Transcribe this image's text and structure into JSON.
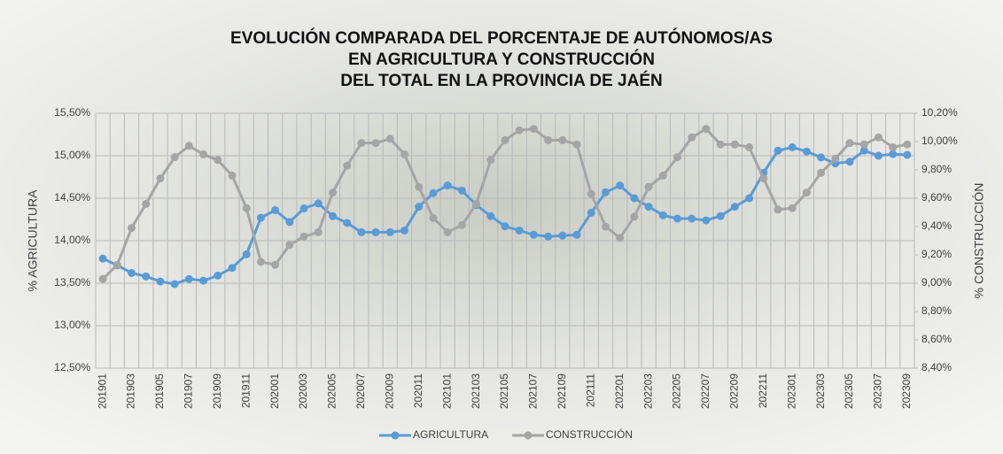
{
  "chart_data": {
    "type": "line",
    "title": [
      "EVOLUCIÓN COMPARADA DEL PORCENTAJE DE AUTÓNOMOS/AS",
      "EN AGRICULTURA Y CONSTRUCCIÓN",
      "DEL TOTAL EN LA PROVINCIA DE JAÉN"
    ],
    "ylabel": "% AGRICULTURA",
    "y2label": "% CONSTRUCCIÓN",
    "categories": [
      "201901",
      null,
      "201903",
      null,
      "201905",
      null,
      "201907",
      null,
      "201909",
      null,
      "201911",
      null,
      "202001",
      null,
      "202003",
      null,
      "202005",
      null,
      "202007",
      null,
      "202009",
      null,
      "202011",
      null,
      "202101",
      null,
      "202103",
      null,
      "202105",
      null,
      "202107",
      null,
      "202109",
      null,
      "202111",
      null,
      "202201",
      null,
      "202203",
      null,
      "202205",
      null,
      "202207",
      null,
      "202209",
      null,
      "202211",
      null,
      "202301",
      null,
      "202303",
      null,
      "202305",
      null,
      "202307",
      null,
      "202309"
    ],
    "series": [
      {
        "name": "AGRICULTURA",
        "color": "#5b9bd5",
        "axis": "y",
        "values": [
          13.79,
          13.71,
          13.62,
          13.58,
          13.52,
          13.49,
          13.55,
          13.53,
          13.59,
          13.68,
          13.84,
          14.27,
          14.36,
          14.22,
          14.38,
          14.44,
          14.29,
          14.21,
          14.1,
          14.1,
          14.1,
          14.12,
          14.4,
          14.56,
          14.65,
          14.59,
          14.42,
          14.29,
          14.17,
          14.12,
          14.07,
          14.05,
          14.06,
          14.07,
          14.33,
          14.57,
          14.65,
          14.5,
          14.4,
          14.3,
          14.26,
          14.26,
          14.24,
          14.29,
          14.4,
          14.5,
          14.8,
          15.06,
          15.1,
          15.05,
          14.98,
          14.91,
          14.93,
          15.06,
          15.0,
          15.02,
          15.01
        ]
      },
      {
        "name": "CONSTRUCCIÓN",
        "color": "#a5a5a5",
        "axis": "y2",
        "values": [
          9.03,
          9.13,
          9.39,
          9.56,
          9.74,
          9.89,
          9.97,
          9.91,
          9.87,
          9.76,
          9.53,
          9.15,
          9.13,
          9.27,
          9.33,
          9.36,
          9.64,
          9.83,
          9.99,
          9.99,
          10.02,
          9.91,
          9.68,
          9.46,
          9.36,
          9.41,
          9.56,
          9.87,
          10.01,
          10.08,
          10.09,
          10.01,
          10.01,
          9.98,
          9.63,
          9.4,
          9.32,
          9.47,
          9.68,
          9.76,
          9.89,
          10.03,
          10.09,
          9.98,
          9.98,
          9.96,
          9.74,
          9.52,
          9.53,
          9.64,
          9.78,
          9.88,
          9.99,
          9.98,
          10.03,
          9.96,
          9.98
        ]
      }
    ],
    "ylim": [
      12.5,
      15.5
    ],
    "yticks": [
      {
        "value": 12.5,
        "label": "12,50%"
      },
      {
        "value": 13,
        "label": "13,00%"
      },
      {
        "value": 13.5,
        "label": "13,50%"
      },
      {
        "value": 14,
        "label": "14,00%"
      },
      {
        "value": 14.5,
        "label": "14,50%"
      },
      {
        "value": 15,
        "label": "15,00%"
      },
      {
        "value": 15.5,
        "label": "15,50%"
      }
    ],
    "y2lim": [
      8.4,
      10.2
    ],
    "y2ticks": [
      {
        "value": 8.4,
        "label": "8,40%"
      },
      {
        "value": 8.6,
        "label": "8,60%"
      },
      {
        "value": 8.8,
        "label": "8,80%"
      },
      {
        "value": 9,
        "label": "9,00%"
      },
      {
        "value": 9.2,
        "label": "9,20%"
      },
      {
        "value": 9.4,
        "label": "9,40%"
      },
      {
        "value": 9.6,
        "label": "9,60%"
      },
      {
        "value": 9.8,
        "label": "9,80%"
      },
      {
        "value": 10,
        "label": "10,00%"
      },
      {
        "value": 10.2,
        "label": "10,20%"
      }
    ],
    "grid": true,
    "legend": "bottom"
  }
}
